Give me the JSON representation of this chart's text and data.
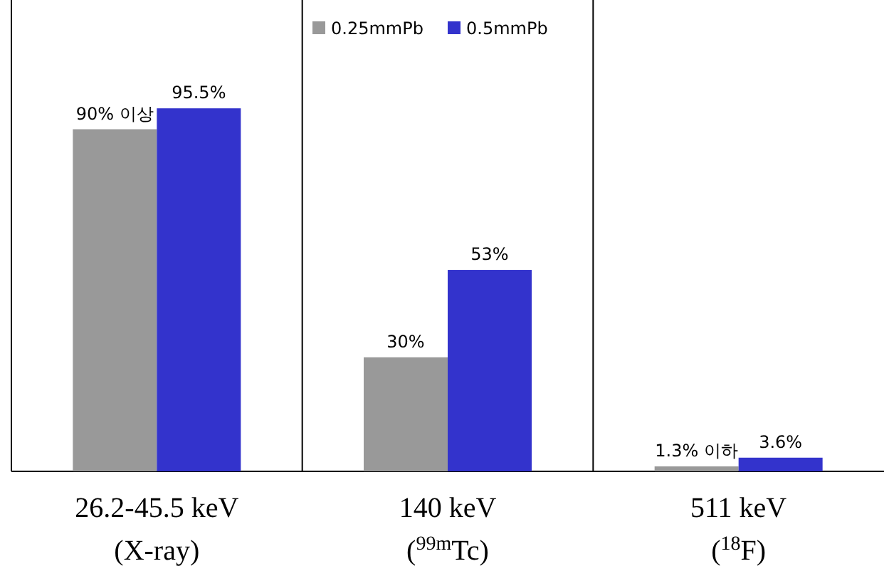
{
  "chart_data": {
    "type": "bar",
    "categories": [
      "26.2-45.5 keV (X-ray)",
      "140 keV ($^{99m}$Tc)",
      "511 keV ($^{18}$F)"
    ],
    "series": [
      {
        "name": "0.25mmPb",
        "color": "#999999",
        "values": [
          90,
          30,
          1.3
        ],
        "value_labels": [
          "90% 이상",
          "30%",
          "1.3% 이하"
        ]
      },
      {
        "name": "0.5mmPb",
        "color": "#3333cc",
        "values": [
          95.5,
          53,
          3.6
        ],
        "value_labels": [
          "95.5%",
          "53%",
          "3.6%"
        ]
      }
    ],
    "ylim": [
      0,
      124
    ],
    "legend": "top"
  }
}
